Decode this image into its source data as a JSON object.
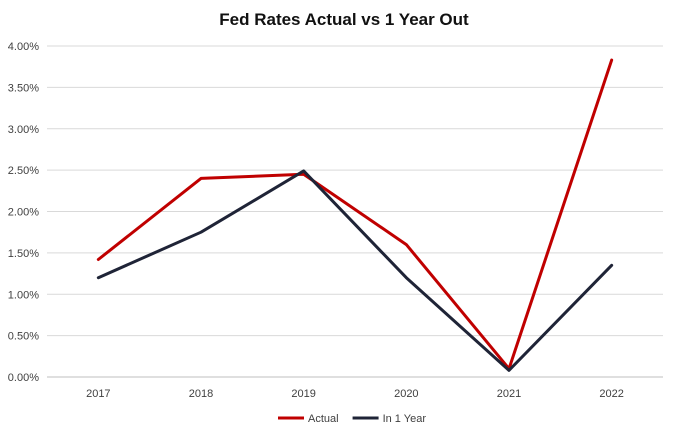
{
  "chart_data": {
    "type": "line",
    "title": "Fed Rates Actual vs 1 Year Out",
    "xlabel": "",
    "ylabel": "",
    "categories": [
      "2017",
      "2018",
      "2019",
      "2020",
      "2021",
      "2022"
    ],
    "ylim": [
      0,
      4
    ],
    "yticks": [
      "0.00%",
      "0.50%",
      "1.00%",
      "1.50%",
      "2.00%",
      "2.50%",
      "3.00%",
      "3.50%",
      "4.00%"
    ],
    "grid": true,
    "legend_position": "bottom",
    "series": [
      {
        "name": "Actual",
        "color": "#c00000",
        "values": [
          1.42,
          2.4,
          2.45,
          1.6,
          0.1,
          3.83
        ]
      },
      {
        "name": "In 1 Year",
        "color": "#1f2437",
        "values": [
          1.2,
          1.75,
          2.49,
          1.2,
          0.08,
          1.35
        ]
      }
    ]
  }
}
